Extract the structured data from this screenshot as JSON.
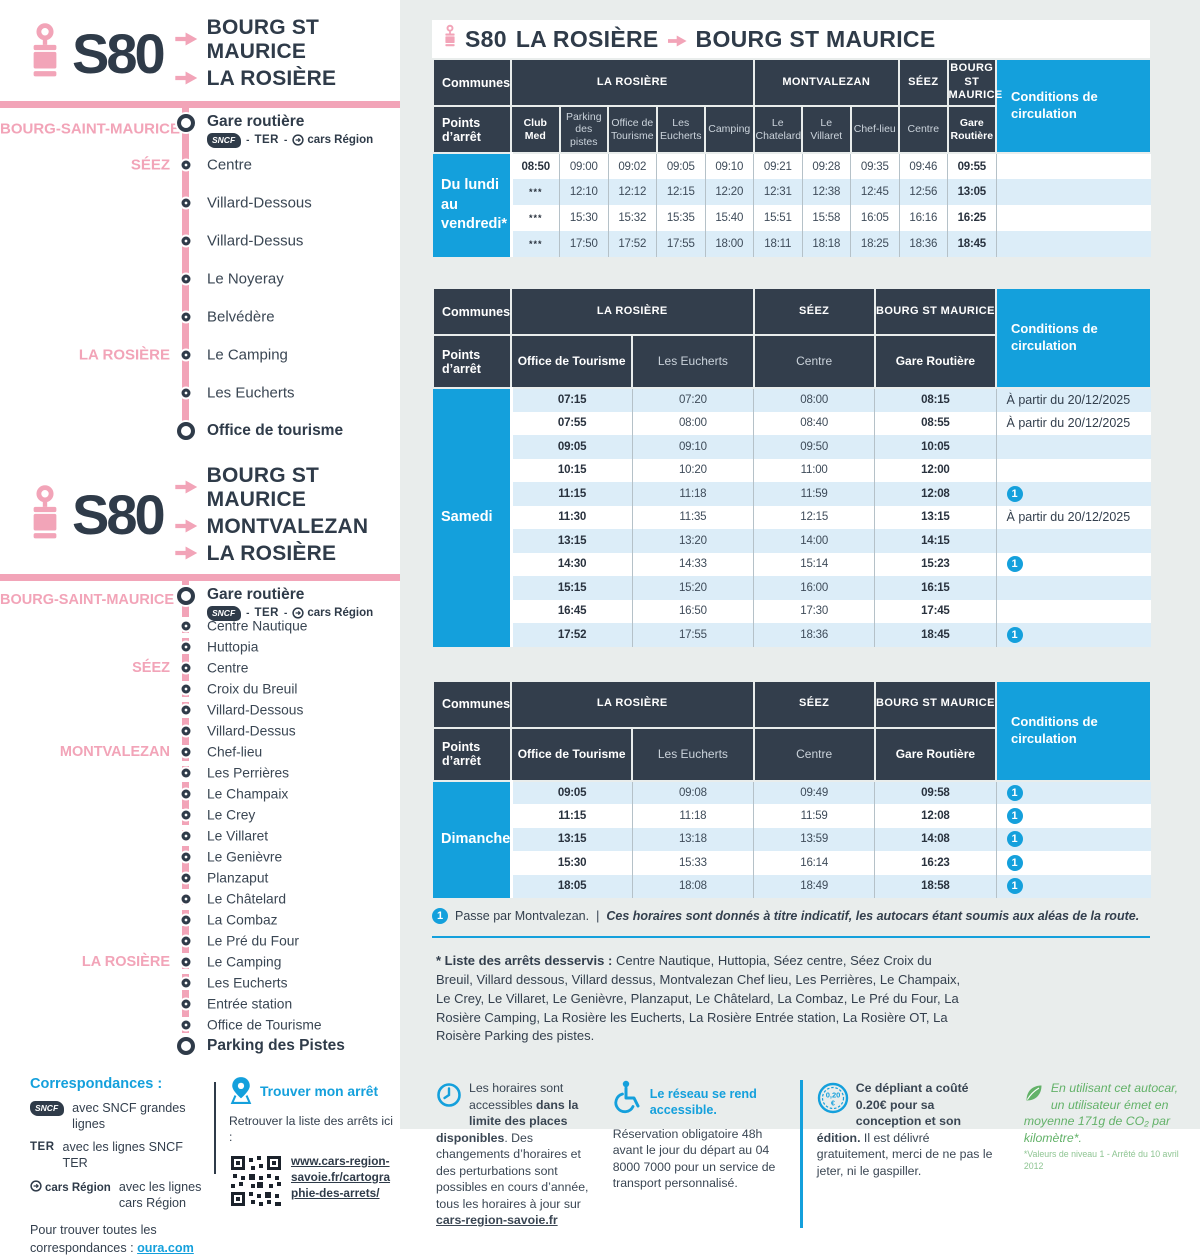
{
  "colors": {
    "pink": "#F2A4B8",
    "navy": "#2F3B49",
    "header_navy": "#333E4C",
    "blue": "#14A0DC",
    "light_row": "#DCEDF8",
    "panel_bg": "#E9EDEC",
    "green": "#63B269"
  },
  "sidebar": {
    "logos": {
      "sncf": "SNCF",
      "ter": "TER",
      "cars": "cars Région",
      "sep": "-"
    },
    "routes": [
      {
        "line_code": "S80",
        "destinations": [
          "BOURG ST MAURICE",
          "LA ROSIÈRE"
        ],
        "line_style": "solid",
        "stops": [
          {
            "name": "Gare routière",
            "commune": "BOURG-SAINT-MAURICE",
            "terminal": true,
            "logos": true
          },
          {
            "name": "Centre",
            "commune": "SÉEZ"
          },
          {
            "name": "Villard-Dessous"
          },
          {
            "name": "Villard-Dessus"
          },
          {
            "name": "Le Noyeray"
          },
          {
            "name": "Belvédère"
          },
          {
            "name": "Le Camping",
            "commune": "LA ROSIÈRE"
          },
          {
            "name": "Les Eucherts"
          },
          {
            "name": "Office de tourisme",
            "terminal": true
          }
        ]
      },
      {
        "line_code": "S80",
        "destinations": [
          "BOURG ST MAURICE",
          "MONTVALEZAN",
          "LA ROSIÈRE"
        ],
        "line_style": "dashed",
        "stops": [
          {
            "name": "Gare routière",
            "commune": "BOURG-SAINT-MAURICE",
            "terminal": true,
            "logos": true
          },
          {
            "name": "Centre Nautique"
          },
          {
            "name": "Huttopia"
          },
          {
            "name": "Centre",
            "commune": "SÉEZ"
          },
          {
            "name": "Croix du Breuil"
          },
          {
            "name": "Villard-Dessous"
          },
          {
            "name": "Villard-Dessus"
          },
          {
            "name": "Chef-lieu",
            "commune": "MONTVALEZAN"
          },
          {
            "name": "Les Perrières"
          },
          {
            "name": "Le Champaix"
          },
          {
            "name": "Le Crey"
          },
          {
            "name": "Le Villaret"
          },
          {
            "name": "Le Genièvre"
          },
          {
            "name": "Planzaput"
          },
          {
            "name": "Le Châtelard"
          },
          {
            "name": "La Combaz"
          },
          {
            "name": "Le Pré du Four"
          },
          {
            "name": "Le Camping",
            "commune": "LA ROSIÈRE"
          },
          {
            "name": "Les Eucherts"
          },
          {
            "name": "Entrée station"
          },
          {
            "name": "Office de Tourisme"
          },
          {
            "name": "Parking des Pistes",
            "terminal": true
          }
        ]
      }
    ],
    "correspondances": {
      "title": "Correspondances :",
      "items": [
        {
          "logo": "sncf",
          "text": "avec SNCF grandes lignes"
        },
        {
          "logo": "ter",
          "text": "avec les lignes SNCF TER"
        },
        {
          "logo": "cars-region",
          "text": "avec les lignes cars Région"
        }
      ],
      "footer_text": "Pour trouver toutes les correspondances : ",
      "footer_link": "oura.com"
    },
    "find_stop": {
      "title": "Trouver mon arrêt",
      "subtitle": "Retrouver la liste des arrêts ici :",
      "link": "www.cars-region-savoie.fr/cartographie-des-arrets/"
    }
  },
  "main": {
    "title": {
      "line": "S80",
      "from": "LA ROSIÈRE",
      "to": "BOURG ST MAURICE"
    },
    "header_labels": {
      "communes": "Communes",
      "points": "Points d’arrêt",
      "conditions": "Conditions de circulation"
    },
    "tables": [
      {
        "day_label": "Du lundi au vendredi*",
        "commune_groups": [
          {
            "label": "LA ROSIÈRE",
            "span": 5
          },
          {
            "label": "MONTVALEZAN",
            "span": 3
          },
          {
            "label": "SÉEZ",
            "span": 1
          },
          {
            "label": "BOURG ST MAURICE",
            "span": 1
          }
        ],
        "stops": [
          "Club Med",
          "Parking des pistes",
          "Office de Tourisme",
          "Les Eucherts",
          "Camping",
          "Le Chatelard",
          "Le Villaret",
          "Chef-lieu",
          "Centre",
          "Gare Routière"
        ],
        "rows": [
          {
            "times": [
              "08:50",
              "09:00",
              "09:02",
              "09:05",
              "09:10",
              "09:21",
              "09:28",
              "09:35",
              "09:46",
              "09:55"
            ],
            "condition": ""
          },
          {
            "times": [
              "***",
              "12:10",
              "12:12",
              "12:15",
              "12:20",
              "12:31",
              "12:38",
              "12:45",
              "12:56",
              "13:05"
            ],
            "condition": ""
          },
          {
            "times": [
              "***",
              "15:30",
              "15:32",
              "15:35",
              "15:40",
              "15:51",
              "15:58",
              "16:05",
              "16:16",
              "16:25"
            ],
            "condition": ""
          },
          {
            "times": [
              "***",
              "17:50",
              "17:52",
              "17:55",
              "18:00",
              "18:11",
              "18:18",
              "18:25",
              "18:36",
              "18:45"
            ],
            "condition": ""
          }
        ]
      },
      {
        "day_label": "Samedi",
        "commune_groups": [
          {
            "label": "LA ROSIÈRE",
            "span": 2
          },
          {
            "label": "SÉEZ",
            "span": 1
          },
          {
            "label": "BOURG ST MAURICE",
            "span": 1
          }
        ],
        "stops": [
          "Office de Tourisme",
          "Les Eucherts",
          "Centre",
          "Gare Routière"
        ],
        "rows": [
          {
            "times": [
              "07:15",
              "07:20",
              "08:00",
              "08:15"
            ],
            "condition": "À partir du 20/12/2025"
          },
          {
            "times": [
              "07:55",
              "08:00",
              "08:40",
              "08:55"
            ],
            "condition": "À partir du 20/12/2025"
          },
          {
            "times": [
              "09:05",
              "09:10",
              "09:50",
              "10:05"
            ],
            "condition": ""
          },
          {
            "times": [
              "10:15",
              "10:20",
              "11:00",
              "12:00"
            ],
            "condition": ""
          },
          {
            "times": [
              "11:15",
              "11:18",
              "11:59",
              "12:08"
            ],
            "condition": "ICON1"
          },
          {
            "times": [
              "11:30",
              "11:35",
              "12:15",
              "13:15"
            ],
            "condition": "À partir du 20/12/2025"
          },
          {
            "times": [
              "13:15",
              "13:20",
              "14:00",
              "14:15"
            ],
            "condition": ""
          },
          {
            "times": [
              "14:30",
              "14:33",
              "15:14",
              "15:23"
            ],
            "condition": "ICON1"
          },
          {
            "times": [
              "15:15",
              "15:20",
              "16:00",
              "16:15"
            ],
            "condition": ""
          },
          {
            "times": [
              "16:45",
              "16:50",
              "17:30",
              "17:45"
            ],
            "condition": ""
          },
          {
            "times": [
              "17:52",
              "17:55",
              "18:36",
              "18:45"
            ],
            "condition": "ICON1"
          }
        ]
      },
      {
        "day_label": "Dimanche",
        "commune_groups": [
          {
            "label": "LA ROSIÈRE",
            "span": 2
          },
          {
            "label": "SÉEZ",
            "span": 1
          },
          {
            "label": "BOURG ST MAURICE",
            "span": 1
          }
        ],
        "stops": [
          "Office de Tourisme",
          "Les Eucherts",
          "Centre",
          "Gare Routière"
        ],
        "rows": [
          {
            "times": [
              "09:05",
              "09:08",
              "09:49",
              "09:58"
            ],
            "condition": "ICON1"
          },
          {
            "times": [
              "11:15",
              "11:18",
              "11:59",
              "12:08"
            ],
            "condition": "ICON1"
          },
          {
            "times": [
              "13:15",
              "13:18",
              "13:59",
              "14:08"
            ],
            "condition": "ICON1"
          },
          {
            "times": [
              "15:30",
              "15:33",
              "16:14",
              "16:23"
            ],
            "condition": "ICON1"
          },
          {
            "times": [
              "18:05",
              "18:08",
              "18:49",
              "18:58"
            ],
            "condition": "ICON1"
          }
        ]
      }
    ],
    "legend": {
      "marker": "1",
      "text": "Passe par Montvalezan.",
      "sep": "|",
      "note": "Ces horaires sont donnés à titre indicatif, les autocars étant soumis aux aléas de la route."
    },
    "served_stops": {
      "label": "* Liste des arrêts desservis :",
      "text": "Centre Nautique, Huttopia, Séez centre, Séez Croix du Breuil, Villard dessous, Villard dessus, Montvalezan Chef lieu, Les Perrières, Le Champaix, Le Crey, Le Villaret, Le Genièvre, Planzaput, Le Châtelard, La Combaz, Le Pré du Four, La Rosière Camping, La Rosière les Eucherts, La Rosière Entrée station, La Rosière OT, La Roisère Parking des pistes."
    },
    "footer_blocks": [
      {
        "icon": "clock",
        "seg1": "Les horaires sont accessibles ",
        "seg2_bold": "dans la limite des places disponibles",
        "seg3": ". Des changements d’horaires et des perturbations sont possibles en cours d’année, tous les horaires à jour sur ",
        "link": "cars-region-savoie.fr"
      },
      {
        "icon": "wheelchair",
        "title": "Le réseau se rend accessible.",
        "body": "Réservation obligatoire 48h avant le jour du départ au 04 8000 7000 pour un service de transport personnalisé."
      },
      {
        "icon": "coin",
        "coin_label": "0,20",
        "coin_cur": "€",
        "bold": "Ce dépliant a coûté 0.20€ pour sa conception et son édition.",
        "rest": " Il est délivré gratuitement, merci de ne pas le jeter, ni le gaspiller."
      },
      {
        "icon": "leaf",
        "text": "En utilisant cet autocar, un utilisateur émet en moyenne 171g de CO₂ par kilomètre*.",
        "note": "*Valeurs de niveau 1 - Arrêté du 10 avril 2012"
      }
    ]
  }
}
